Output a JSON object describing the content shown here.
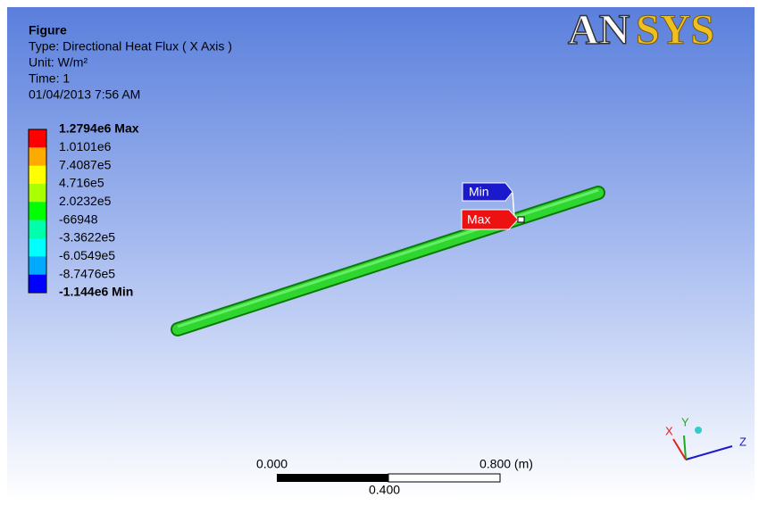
{
  "header": {
    "title": "Figure",
    "lines": [
      "Type: Directional Heat Flux ( X Axis )",
      "Unit: W/m²",
      "Time: 1",
      "01/04/2013 7:56 AM"
    ]
  },
  "legend": {
    "labels": [
      "1.2794e6 Max",
      "1.0101e6",
      "7.4087e5",
      "4.716e5",
      "2.0232e5",
      "-66948",
      "-3.3622e5",
      "-6.0549e5",
      "-8.7476e5",
      "-1.144e6 Min"
    ],
    "band_colors": [
      "#ff0000",
      "#ffaa00",
      "#ffff00",
      "#aaff00",
      "#00ff00",
      "#00ffaa",
      "#00ffff",
      "#00aaff",
      "#0000ff"
    ]
  },
  "probes": {
    "min": "Min",
    "max": "Max"
  },
  "logo": {
    "first": "AN",
    "second": "SYS"
  },
  "scale_bar": {
    "left": "0.000",
    "right": "0.800 (m)",
    "middle": "0.400"
  },
  "triad": {
    "x": "X",
    "y": "Y",
    "z": "Z"
  }
}
